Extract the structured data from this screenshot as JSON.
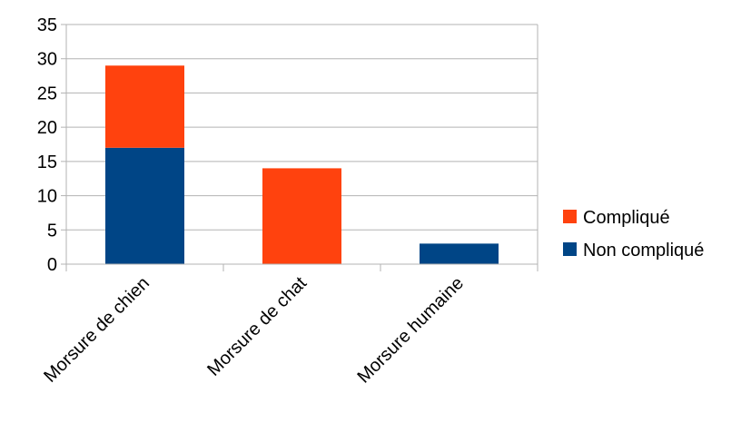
{
  "chart_data": {
    "type": "bar",
    "stacked": true,
    "categories": [
      "Morsure de chien",
      "Morsure de chat",
      "Morsure humaine"
    ],
    "series": [
      {
        "name": "Non compliqué",
        "values": [
          17,
          0,
          3
        ],
        "color": "#004586"
      },
      {
        "name": "Compliqué",
        "values": [
          12,
          14,
          0
        ],
        "color": "#ff420e"
      }
    ],
    "ylim": [
      0,
      35
    ],
    "yticks": [
      0,
      5,
      10,
      15,
      20,
      25,
      30,
      35
    ],
    "grid": true,
    "legend_position": "right",
    "legend_order": [
      "Compliqué",
      "Non compliqué"
    ],
    "title": "",
    "xlabel": "",
    "ylabel": ""
  }
}
